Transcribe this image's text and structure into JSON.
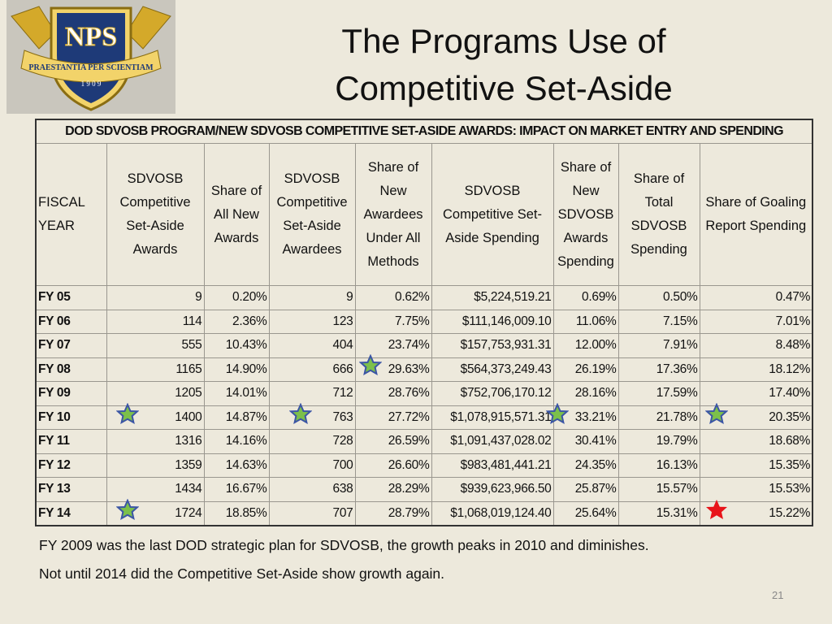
{
  "logo": {
    "acronym": "NPS",
    "motto": "PRAESTANTIA PER SCIENTIAM",
    "year": "1 9 0 9"
  },
  "header": {
    "title": "The Programs Use of Competitive Set-Aside"
  },
  "table": {
    "title": "DOD SDVOSB PROGRAM/NEW SDVOSB COMPETITIVE SET-ASIDE AWARDS: IMPACT ON MARKET ENTRY AND SPENDING",
    "columns": [
      "FISCAL YEAR",
      "SDVOSB Competitive Set-Aside Awards",
      "Share of All New Awards",
      "SDVOSB Competitive Set-Aside Awardees",
      "Share of New Awardees Under All Methods",
      "SDVOSB Competitive Set-Aside Spending",
      "Share of New SDVOSB Awards Spending",
      "Share of Total SDVOSB Spending",
      "Share of Goaling Report Spending"
    ],
    "rows": [
      [
        "FY 05",
        "9",
        "0.20%",
        "9",
        "0.62%",
        "$5,224,519.21",
        "0.69%",
        "0.50%",
        "0.47%"
      ],
      [
        "FY 06",
        "114",
        "2.36%",
        "123",
        "7.75%",
        "$111,146,009.10",
        "11.06%",
        "7.15%",
        "7.01%"
      ],
      [
        "FY 07",
        "555",
        "10.43%",
        "404",
        "23.74%",
        "$157,753,931.31",
        "12.00%",
        "7.91%",
        "8.48%"
      ],
      [
        "FY 08",
        "1165",
        "14.90%",
        "666",
        "29.63%",
        "$564,373,249.43",
        "26.19%",
        "17.36%",
        "18.12%"
      ],
      [
        "FY 09",
        "1205",
        "14.01%",
        "712",
        "28.76%",
        "$752,706,170.12",
        "28.16%",
        "17.59%",
        "17.40%"
      ],
      [
        "FY 10",
        "1400",
        "14.87%",
        "763",
        "27.72%",
        "$1,078,915,571.31",
        "33.21%",
        "21.78%",
        "20.35%"
      ],
      [
        "FY 11",
        "1316",
        "14.16%",
        "728",
        "26.59%",
        "$1,091,437,028.02",
        "30.41%",
        "19.79%",
        "18.68%"
      ],
      [
        "FY 12",
        "1359",
        "14.63%",
        "700",
        "26.60%",
        "$983,481,441.21",
        "24.35%",
        "16.13%",
        "15.35%"
      ],
      [
        "FY 13",
        "1434",
        "16.67%",
        "638",
        "28.29%",
        "$939,623,966.50",
        "25.87%",
        "15.57%",
        "15.53%"
      ],
      [
        "FY 14",
        "1724",
        "18.85%",
        "707",
        "28.79%",
        "$1,068,019,124.40",
        "25.64%",
        "15.31%",
        "15.22%"
      ]
    ]
  },
  "notes": [
    "FY 2009 was the last DOD strategic plan for SDVOSB, the growth peaks in 2010 and diminishes.",
    "Not until 2014 did the Competitive Set-Aside show growth again."
  ],
  "page_number": "21"
}
